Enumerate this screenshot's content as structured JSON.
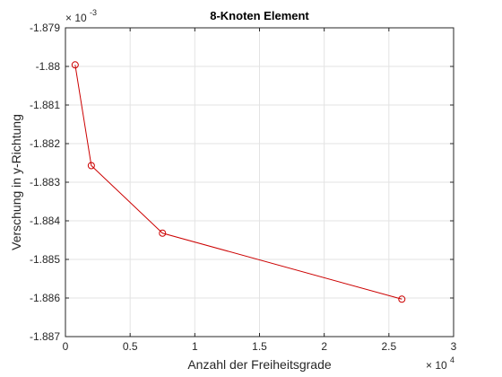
{
  "chart_data": {
    "type": "line",
    "title": "8-Knoten Element",
    "xlabel": "Anzahl der Freiheitsgrade",
    "ylabel": "Verschung in y-Richtung",
    "x_exponent": {
      "base": "× 10",
      "power": "4"
    },
    "y_exponent": {
      "base": "× 10",
      "power": "-3"
    },
    "xlim": [
      0,
      3
    ],
    "ylim": [
      -1.887,
      -1.879
    ],
    "x_ticks": [
      0,
      0.5,
      1,
      1.5,
      2,
      2.5,
      3
    ],
    "x_tick_labels": [
      "0",
      "0.5",
      "1",
      "1.5",
      "2",
      "2.5",
      "3"
    ],
    "y_ticks": [
      -1.879,
      -1.88,
      -1.881,
      -1.882,
      -1.883,
      -1.884,
      -1.885,
      -1.886,
      -1.887
    ],
    "y_tick_labels": [
      "-1.879",
      "-1.88",
      "-1.881",
      "-1.882",
      "-1.883",
      "-1.884",
      "-1.885",
      "-1.886",
      "-1.887"
    ],
    "grid": true,
    "series": [
      {
        "color": "#cc0000",
        "marker": "circle",
        "x": [
          0.075,
          0.2,
          0.75,
          2.6
        ],
        "y": [
          -1.87996,
          -1.88257,
          -1.88432,
          -1.88603
        ]
      }
    ]
  }
}
